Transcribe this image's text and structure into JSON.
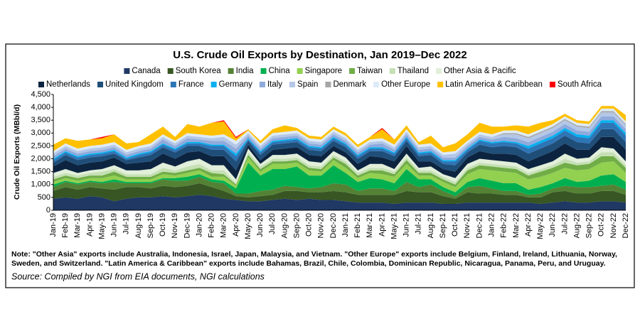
{
  "chart_data": {
    "type": "stacked_area",
    "title": "U.S. Crude Oil Exports by Destination, Jan 2019–Dec 2022",
    "y_label": "Crude Oil Exports (MBbl/d)",
    "note": [
      "Note: \"Other Asia\" exports include Australia, Indonesia, Israel, Japan, Malaysia, and Vietnam.  \"Other Europe\" exports include Belgium, Finland, Ireland, Lithuania, Norway,",
      "Sweden, and Switzerland.  \"Latin America & Caribbean\" exports include Bahamas, Brazil, Chile, Colombia, Dominican Republic, Nicaragua, Panama, Peru, and Uruguay."
    ],
    "source": "Source: Compiled by NGI from EIA documents, NGI calculations",
    "categories": [
      "Jan-19",
      "Feb-19",
      "Mar-19",
      "Apr-19",
      "May-19",
      "Jun-19",
      "Jul-19",
      "Aug-19",
      "Sep-19",
      "Oct-19",
      "Nov-19",
      "Dec-19",
      "Jan-20",
      "Feb-20",
      "Mar-20",
      "Apr-20",
      "May-20",
      "Jun-20",
      "Jul-20",
      "Aug-20",
      "Sep-20",
      "Oct-20",
      "Nov-20",
      "Dec-20",
      "Jan-21",
      "Feb-21",
      "Mar-21",
      "Apr-21",
      "May-21",
      "Jun-21",
      "Jul-21",
      "Aug-21",
      "Sep-21",
      "Oct-21",
      "Nov-21",
      "Dec-21",
      "Jan-22",
      "Feb-22",
      "Mar-22",
      "Apr-22",
      "May-22",
      "Jun-22",
      "Jul-22",
      "Aug-22",
      "Sep-22",
      "Oct-22",
      "Nov-22",
      "Dec-22"
    ],
    "ylim": [
      0,
      4500
    ],
    "yticks": [
      0,
      500,
      {
        "value": 1000,
        "label": "1,000"
      },
      {
        "value": 1500,
        "label": "1,500"
      },
      {
        "value": 2000,
        "label": "2,000"
      },
      {
        "value": 2500,
        "label": "2,500"
      },
      {
        "value": 3000,
        "label": "3,000"
      },
      {
        "value": 3500,
        "label": "3,500"
      },
      {
        "value": 4000,
        "label": "4,000"
      },
      {
        "value": 4500,
        "label": "4,500"
      }
    ],
    "series": [
      {
        "name": "Canada",
        "color": "#1f3864",
        "values": [
          450,
          500,
          450,
          550,
          500,
          350,
          450,
          500,
          500,
          550,
          500,
          550,
          600,
          550,
          450,
          400,
          350,
          350,
          400,
          450,
          400,
          450,
          400,
          400,
          350,
          300,
          300,
          300,
          250,
          300,
          300,
          300,
          250,
          250,
          300,
          300,
          300,
          300,
          300,
          300,
          250,
          300,
          350,
          300,
          300,
          350,
          350,
          300
        ]
      },
      {
        "name": "South Korea",
        "color": "#375623",
        "values": [
          300,
          400,
          350,
          350,
          350,
          450,
          450,
          400,
          350,
          400,
          400,
          400,
          450,
          350,
          300,
          150,
          150,
          200,
          200,
          300,
          350,
          250,
          300,
          350,
          350,
          300,
          300,
          300,
          350,
          450,
          400,
          400,
          300,
          200,
          400,
          350,
          350,
          300,
          300,
          200,
          250,
          400,
          400,
          350,
          350,
          400,
          400,
          300
        ]
      },
      {
        "name": "India",
        "color": "#548235",
        "values": [
          150,
          200,
          200,
          200,
          200,
          300,
          150,
          150,
          200,
          250,
          250,
          200,
          250,
          200,
          300,
          100,
          150,
          200,
          200,
          200,
          150,
          150,
          200,
          300,
          300,
          150,
          250,
          250,
          150,
          350,
          200,
          300,
          200,
          100,
          200,
          300,
          200,
          150,
          150,
          100,
          150,
          150,
          200,
          250,
          250,
          200,
          250,
          200
        ]
      },
      {
        "name": "China",
        "color": "#00b050",
        "values": [
          100,
          50,
          50,
          50,
          50,
          100,
          50,
          50,
          50,
          50,
          100,
          150,
          100,
          100,
          100,
          200,
          1200,
          600,
          800,
          650,
          800,
          500,
          450,
          700,
          450,
          350,
          400,
          350,
          300,
          500,
          300,
          200,
          150,
          150,
          200,
          300,
          300,
          300,
          300,
          200,
          250,
          200,
          300,
          200,
          250,
          400,
          400,
          300
        ]
      },
      {
        "name": "Singapore",
        "color": "#92d050",
        "values": [
          100,
          100,
          100,
          100,
          150,
          150,
          100,
          100,
          100,
          150,
          100,
          150,
          150,
          100,
          150,
          100,
          200,
          150,
          200,
          200,
          150,
          200,
          150,
          200,
          200,
          150,
          200,
          200,
          250,
          200,
          150,
          150,
          200,
          200,
          300,
          350,
          400,
          450,
          400,
          400,
          400,
          400,
          400,
          450,
          450,
          500,
          500,
          350
        ]
      },
      {
        "name": "Taiwan",
        "color": "#70ad47",
        "values": [
          100,
          100,
          100,
          100,
          100,
          150,
          100,
          100,
          100,
          100,
          100,
          100,
          100,
          150,
          100,
          50,
          100,
          100,
          100,
          100,
          100,
          100,
          100,
          100,
          150,
          100,
          100,
          150,
          100,
          150,
          100,
          100,
          100,
          100,
          150,
          150,
          150,
          150,
          150,
          150,
          200,
          200,
          200,
          200,
          200,
          250,
          200,
          200
        ]
      },
      {
        "name": "Thailand",
        "color": "#c5e0b4",
        "values": [
          100,
          100,
          100,
          100,
          150,
          100,
          100,
          100,
          100,
          150,
          100,
          150,
          150,
          100,
          150,
          50,
          100,
          100,
          100,
          100,
          100,
          100,
          100,
          100,
          100,
          100,
          100,
          100,
          100,
          100,
          100,
          100,
          100,
          100,
          100,
          100,
          100,
          100,
          100,
          100,
          100,
          100,
          150,
          100,
          100,
          150,
          150,
          100
        ]
      },
      {
        "name": "Other Asia & Pacific",
        "color": "#e2efda",
        "values": [
          150,
          150,
          100,
          100,
          100,
          150,
          150,
          150,
          200,
          200,
          150,
          200,
          200,
          200,
          200,
          150,
          150,
          100,
          150,
          150,
          150,
          150,
          150,
          150,
          150,
          100,
          150,
          150,
          100,
          150,
          100,
          150,
          100,
          150,
          150,
          150,
          150,
          150,
          150,
          150,
          150,
          150,
          200,
          150,
          150,
          200,
          150,
          150
        ]
      },
      {
        "name": "Netherlands",
        "color": "#0c2440",
        "values": [
          250,
          350,
          300,
          300,
          300,
          300,
          250,
          300,
          300,
          350,
          300,
          350,
          300,
          350,
          350,
          350,
          150,
          150,
          200,
          250,
          250,
          250,
          250,
          200,
          200,
          250,
          300,
          250,
          300,
          300,
          250,
          200,
          200,
          250,
          250,
          300,
          250,
          300,
          300,
          300,
          350,
          400,
          400,
          350,
          300,
          400,
          450,
          450
        ]
      },
      {
        "name": "United Kingdom",
        "color": "#1f4e79",
        "values": [
          150,
          200,
          200,
          200,
          200,
          150,
          150,
          200,
          250,
          250,
          250,
          250,
          200,
          250,
          250,
          350,
          150,
          200,
          200,
          200,
          200,
          200,
          200,
          200,
          200,
          200,
          200,
          250,
          200,
          200,
          200,
          250,
          200,
          250,
          200,
          250,
          250,
          300,
          300,
          300,
          300,
          300,
          300,
          300,
          250,
          300,
          300,
          300
        ]
      },
      {
        "name": "France",
        "color": "#2e75b6",
        "values": [
          100,
          100,
          100,
          100,
          100,
          100,
          50,
          100,
          100,
          100,
          100,
          100,
          100,
          150,
          150,
          200,
          50,
          100,
          100,
          100,
          100,
          100,
          100,
          100,
          100,
          100,
          100,
          100,
          100,
          100,
          100,
          100,
          100,
          150,
          100,
          150,
          150,
          150,
          150,
          200,
          200,
          200,
          200,
          200,
          200,
          250,
          250,
          250
        ]
      },
      {
        "name": "Germany",
        "color": "#00b0f0",
        "values": [
          50,
          50,
          50,
          50,
          50,
          50,
          50,
          50,
          50,
          50,
          50,
          50,
          50,
          50,
          50,
          100,
          50,
          50,
          50,
          50,
          50,
          50,
          50,
          50,
          50,
          50,
          50,
          50,
          50,
          50,
          50,
          50,
          50,
          50,
          50,
          50,
          50,
          50,
          50,
          100,
          100,
          100,
          100,
          100,
          100,
          100,
          100,
          100
        ]
      },
      {
        "name": "Italy",
        "color": "#8faadc",
        "values": [
          100,
          100,
          100,
          100,
          100,
          100,
          100,
          100,
          100,
          150,
          100,
          150,
          100,
          150,
          150,
          200,
          100,
          100,
          100,
          100,
          100,
          100,
          100,
          100,
          100,
          100,
          100,
          150,
          100,
          100,
          100,
          100,
          100,
          100,
          100,
          100,
          100,
          150,
          150,
          150,
          150,
          150,
          150,
          150,
          150,
          150,
          150,
          150
        ]
      },
      {
        "name": "Spain",
        "color": "#b4c7e7",
        "values": [
          100,
          100,
          100,
          100,
          100,
          100,
          100,
          100,
          100,
          100,
          100,
          100,
          100,
          100,
          150,
          150,
          100,
          100,
          100,
          100,
          100,
          100,
          100,
          100,
          100,
          100,
          100,
          100,
          100,
          100,
          100,
          100,
          100,
          150,
          100,
          100,
          100,
          100,
          150,
          150,
          150,
          150,
          150,
          150,
          150,
          150,
          150,
          150
        ]
      },
      {
        "name": "Denmark",
        "color": "#a6a6a6",
        "values": [
          0,
          0,
          0,
          0,
          0,
          0,
          0,
          0,
          0,
          0,
          0,
          0,
          0,
          0,
          0,
          0,
          0,
          0,
          0,
          0,
          0,
          0,
          0,
          0,
          0,
          0,
          0,
          0,
          0,
          0,
          0,
          0,
          0,
          0,
          0,
          0,
          0,
          50,
          50,
          50,
          50,
          50,
          50,
          50,
          50,
          50,
          50,
          50
        ]
      },
      {
        "name": "Other Europe",
        "color": "#deebf7",
        "values": [
          100,
          100,
          100,
          100,
          100,
          100,
          100,
          100,
          100,
          100,
          100,
          100,
          100,
          100,
          100,
          150,
          100,
          100,
          100,
          100,
          100,
          100,
          100,
          100,
          100,
          100,
          100,
          100,
          100,
          100,
          100,
          100,
          100,
          100,
          100,
          100,
          100,
          100,
          100,
          100,
          100,
          100,
          100,
          100,
          100,
          100,
          100,
          100
        ]
      },
      {
        "name": "Latin America & Caribbean",
        "color": "#ffc000",
        "values": [
          250,
          200,
          300,
          250,
          250,
          300,
          250,
          150,
          350,
          300,
          150,
          350,
          300,
          500,
          500,
          100,
          50,
          100,
          150,
          250,
          100,
          100,
          100,
          100,
          100,
          100,
          100,
          350,
          200,
          150,
          100,
          300,
          200,
          300,
          250,
          350,
          300,
          150,
          200,
          300,
          250,
          150,
          100,
          100,
          100,
          100,
          100,
          250
        ]
      },
      {
        "name": "South Africa",
        "color": "#ff0000",
        "values": [
          0,
          0,
          0,
          0,
          50,
          0,
          0,
          0,
          0,
          0,
          0,
          0,
          0,
          0,
          50,
          50,
          0,
          0,
          0,
          0,
          0,
          0,
          0,
          0,
          0,
          0,
          0,
          50,
          0,
          0,
          0,
          0,
          0,
          0,
          0,
          0,
          0,
          0,
          0,
          0,
          0,
          0,
          0,
          0,
          0,
          0,
          0,
          0
        ]
      }
    ]
  }
}
